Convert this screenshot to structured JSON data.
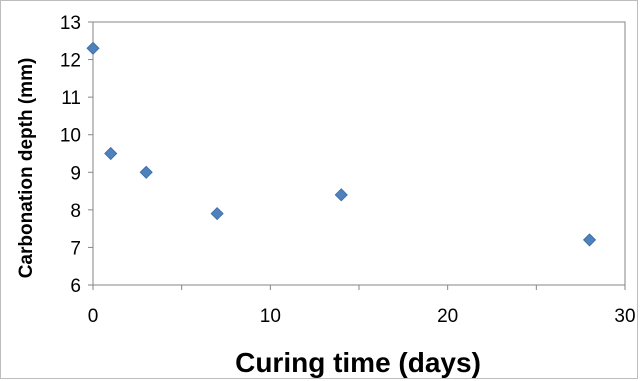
{
  "chart_data": {
    "type": "scatter",
    "title": "",
    "xlabel": "Curing time (days)",
    "ylabel": "Carbonation depth (mm)",
    "xlim": [
      0,
      30
    ],
    "ylim": [
      6,
      13
    ],
    "x_ticks": [
      0,
      10,
      20,
      30
    ],
    "y_ticks": [
      6,
      7,
      8,
      9,
      10,
      11,
      12,
      13
    ],
    "grid": false,
    "legend": "none",
    "marker": "diamond",
    "series": [
      {
        "color": "#4f81bd",
        "points": [
          {
            "x": 0,
            "y": 12.3
          },
          {
            "x": 1,
            "y": 9.5
          },
          {
            "x": 3,
            "y": 9.0
          },
          {
            "x": 7,
            "y": 7.9
          },
          {
            "x": 14,
            "y": 8.4
          },
          {
            "x": 28,
            "y": 7.2
          }
        ]
      }
    ]
  }
}
